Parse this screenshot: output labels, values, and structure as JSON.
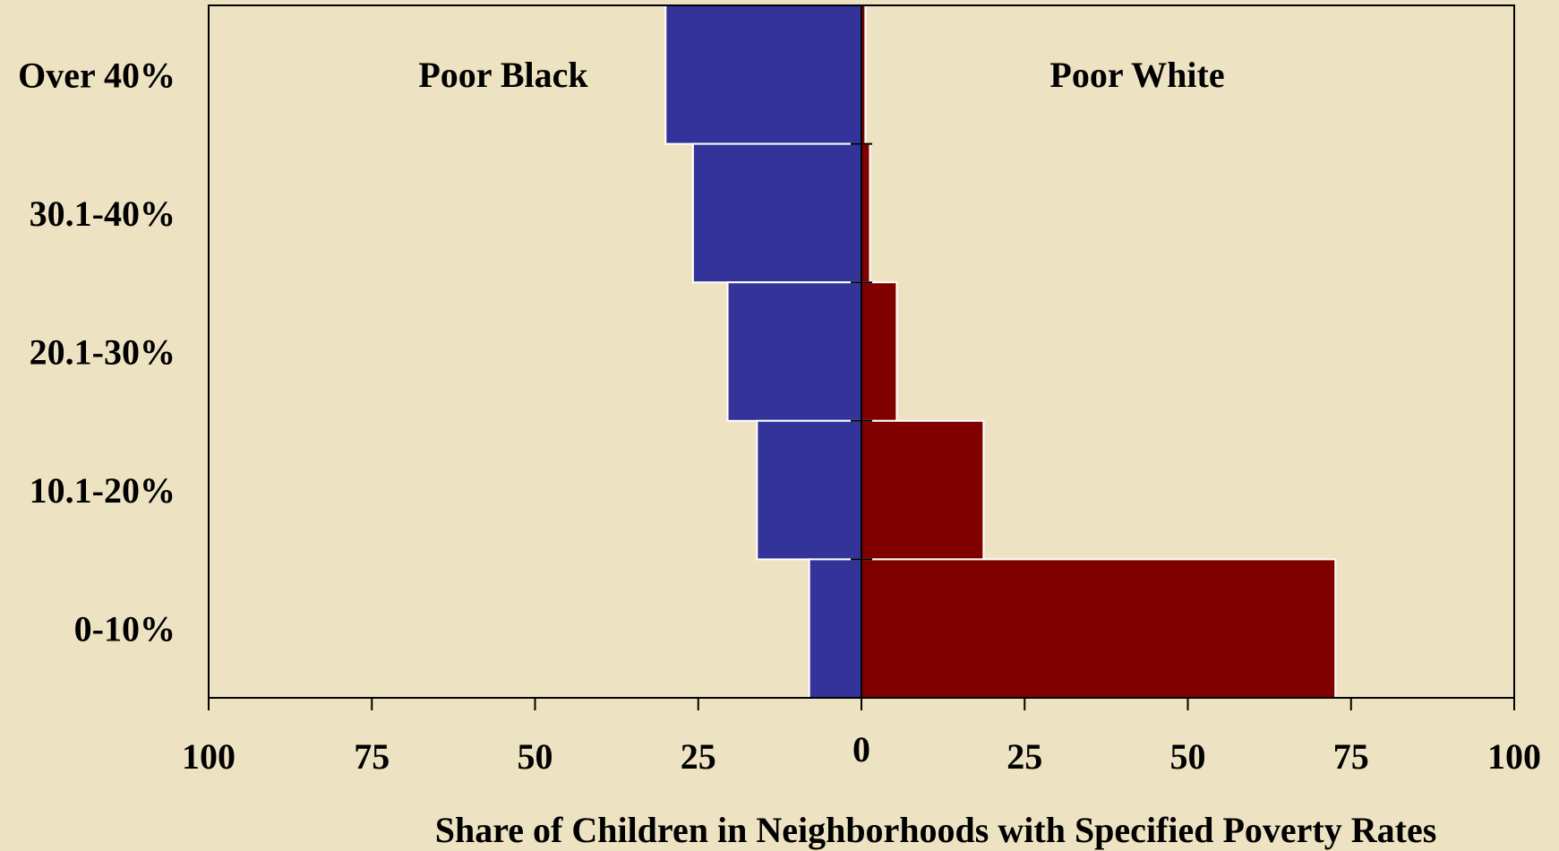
{
  "chart_data": {
    "type": "bar",
    "orientation": "horizontal-diverging",
    "xlabel": "Share of Children in Neighborhoods with Specified Poverty Rates",
    "categories": [
      "Over 40%",
      "30.1-40%",
      "20.1-30%",
      "10.1-20%",
      "0-10%"
    ],
    "xlim": [
      -100,
      100
    ],
    "xticks": [
      -100,
      -75,
      -50,
      -25,
      0,
      25,
      50,
      75,
      100
    ],
    "xtick_labels": [
      "100",
      "75",
      "50",
      "25",
      "0",
      "25",
      "50",
      "75",
      "100"
    ],
    "series": [
      {
        "name": "Poor Black",
        "side": "left",
        "color": "#333399",
        "values": [
          30,
          25.8,
          20.5,
          16,
          8
        ]
      },
      {
        "name": "Poor White",
        "side": "right",
        "color": "#800000",
        "values": [
          0.6,
          1.3,
          5.4,
          18.7,
          72.6
        ]
      }
    ],
    "grid": false,
    "legend": "in-plot labels"
  }
}
